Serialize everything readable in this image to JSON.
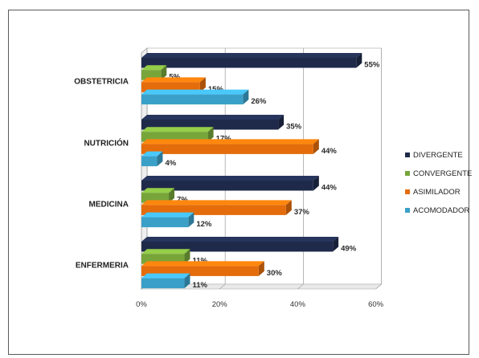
{
  "chart_data": {
    "type": "bar",
    "orientation": "horizontal",
    "categories": [
      "OBSTETRICIA",
      "NUTRICIÓN",
      "MEDICINA",
      "ENFERMERIA"
    ],
    "series": [
      {
        "name": "DIVERGENTE",
        "color": "#1f2a4a",
        "values": [
          55,
          35,
          44,
          49
        ]
      },
      {
        "name": "CONVERGENTE",
        "color": "#77a53a",
        "values": [
          5,
          17,
          7,
          11
        ]
      },
      {
        "name": "ASIMILADOR",
        "color": "#e46c0a",
        "values": [
          15,
          44,
          37,
          30
        ]
      },
      {
        "name": "ACOMODADOR",
        "color": "#3aa0c8",
        "values": [
          26,
          4,
          12,
          11
        ]
      }
    ],
    "data_labels": [
      [
        "55%",
        "5%",
        "15%",
        "26%"
      ],
      [
        "35%",
        "17%",
        "44%",
        "4%"
      ],
      [
        "44%",
        "7%",
        "37%",
        "12%"
      ],
      [
        "49%",
        "11%",
        "30%",
        "11%"
      ]
    ],
    "x_ticks": [
      "0%",
      "20%",
      "40%",
      "60%"
    ],
    "xlim": [
      0,
      60
    ],
    "grid": true,
    "legend_position": "right",
    "title": "",
    "xlabel": "",
    "ylabel": ""
  }
}
